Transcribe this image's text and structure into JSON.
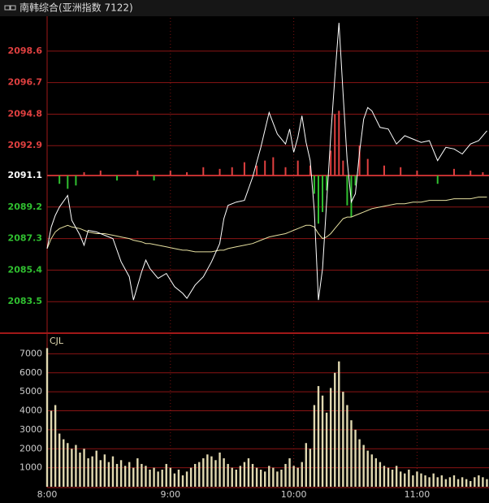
{
  "header": {
    "title": "南韩综合(亚洲指数 7122)"
  },
  "chart_data": [
    {
      "type": "line",
      "xlim": [
        0,
        215
      ],
      "ylim": [
        2081.6,
        2100.6
      ],
      "yticks": [
        2083.5,
        2085.4,
        2087.3,
        2089.2,
        2091.1,
        2092.9,
        2094.8,
        2096.7,
        2098.6
      ],
      "up_color": "#e04040",
      "down_color": "#30c030",
      "base": 2091.1,
      "grid": true,
      "x": [
        0,
        2,
        4,
        6,
        10,
        12,
        16,
        18,
        20,
        24,
        28,
        32,
        36,
        40,
        42,
        46,
        48,
        50,
        54,
        58,
        62,
        66,
        68,
        72,
        76,
        80,
        84,
        86,
        88,
        92,
        96,
        100,
        104,
        108,
        112,
        116,
        118,
        120,
        122,
        124,
        126,
        128,
        130,
        132,
        134,
        136,
        138,
        140,
        142,
        144,
        146,
        148,
        150,
        152,
        154,
        156,
        158,
        162,
        166,
        170,
        174,
        178,
        182,
        186,
        190,
        194,
        198,
        202,
        206,
        210,
        214
      ],
      "series": [
        {
          "color": "#ffffff",
          "values": [
            2086.7,
            2088.0,
            2088.7,
            2089.2,
            2089.9,
            2088.4,
            2087.5,
            2086.9,
            2087.8,
            2087.7,
            2087.5,
            2087.3,
            2085.9,
            2085.0,
            2083.6,
            2085.3,
            2086.0,
            2085.5,
            2084.9,
            2085.2,
            2084.4,
            2084.0,
            2083.7,
            2084.5,
            2085.0,
            2085.9,
            2087.0,
            2088.5,
            2089.3,
            2089.5,
            2089.6,
            2091.0,
            2092.8,
            2094.9,
            2093.6,
            2093.0,
            2093.9,
            2092.5,
            2093.4,
            2094.7,
            2093.1,
            2092.0,
            2089.0,
            2083.6,
            2085.5,
            2089.5,
            2093.5,
            2097.0,
            2100.3,
            2096.0,
            2092.0,
            2089.5,
            2090.0,
            2092.5,
            2094.5,
            2095.2,
            2095.0,
            2094.0,
            2093.9,
            2093.0,
            2093.5,
            2093.3,
            2093.1,
            2093.2,
            2092.0,
            2092.8,
            2092.7,
            2092.4,
            2093.0,
            2093.2,
            2093.8
          ]
        },
        {
          "color": "#e6e0a0",
          "values": [
            2086.7,
            2087.3,
            2087.7,
            2087.9,
            2088.1,
            2088.0,
            2087.9,
            2087.8,
            2087.7,
            2087.6,
            2087.6,
            2087.5,
            2087.4,
            2087.3,
            2087.2,
            2087.1,
            2087.0,
            2087.0,
            2086.9,
            2086.8,
            2086.7,
            2086.6,
            2086.6,
            2086.5,
            2086.5,
            2086.5,
            2086.6,
            2086.6,
            2086.7,
            2086.8,
            2086.9,
            2087.0,
            2087.2,
            2087.4,
            2087.5,
            2087.6,
            2087.7,
            2087.8,
            2087.9,
            2088.0,
            2088.1,
            2088.1,
            2088.0,
            2087.6,
            2087.3,
            2087.4,
            2087.6,
            2087.9,
            2088.2,
            2088.5,
            2088.6,
            2088.6,
            2088.7,
            2088.8,
            2088.9,
            2089.0,
            2089.1,
            2089.2,
            2089.3,
            2089.4,
            2089.4,
            2089.5,
            2089.5,
            2089.6,
            2089.6,
            2089.6,
            2089.7,
            2089.7,
            2089.7,
            2089.8,
            2089.8
          ]
        }
      ],
      "changes": {
        "x": [
          6,
          10,
          14,
          18,
          26,
          34,
          44,
          52,
          60,
          68,
          76,
          84,
          90,
          96,
          102,
          106,
          110,
          116,
          122,
          128,
          130,
          132,
          134,
          136,
          138,
          140,
          142,
          144,
          146,
          148,
          150,
          152,
          156,
          164,
          172,
          180,
          190,
          198,
          206,
          212
        ],
        "values": [
          2090.6,
          2090.3,
          2090.5,
          2091.3,
          2091.4,
          2090.8,
          2091.4,
          2090.8,
          2091.4,
          2091.3,
          2091.6,
          2091.5,
          2091.6,
          2091.9,
          2091.7,
          2092.0,
          2092.2,
          2091.6,
          2092.0,
          2091.7,
          2090.0,
          2088.2,
          2088.9,
          2090.2,
          2092.6,
          2094.8,
          2095.0,
          2092.0,
          2089.3,
          2088.6,
          2090.5,
          2092.9,
          2092.1,
          2091.7,
          2091.6,
          2091.4,
          2090.6,
          2091.5,
          2091.4,
          2091.3
        ]
      }
    },
    {
      "type": "bar",
      "label": "CJL",
      "color": "#e0d8b0",
      "xlim": [
        0,
        215
      ],
      "ylim": [
        0,
        8000
      ],
      "yticks": [
        1000,
        2000,
        3000,
        4000,
        5000,
        6000,
        7000
      ],
      "xticks": [
        {
          "value": 0,
          "label": "8:00"
        },
        {
          "value": 60,
          "label": "9:00"
        },
        {
          "value": 120,
          "label": "10:00"
        },
        {
          "value": 180,
          "label": "11:00"
        }
      ],
      "grid": true,
      "x": [
        0,
        2,
        4,
        6,
        8,
        10,
        12,
        14,
        16,
        18,
        20,
        22,
        24,
        26,
        28,
        30,
        32,
        34,
        36,
        38,
        40,
        42,
        44,
        46,
        48,
        50,
        52,
        54,
        56,
        58,
        60,
        62,
        64,
        66,
        68,
        70,
        72,
        74,
        76,
        78,
        80,
        82,
        84,
        86,
        88,
        90,
        92,
        94,
        96,
        98,
        100,
        102,
        104,
        106,
        108,
        110,
        112,
        114,
        116,
        118,
        120,
        122,
        124,
        126,
        128,
        130,
        132,
        134,
        136,
        138,
        140,
        142,
        144,
        146,
        148,
        150,
        152,
        154,
        156,
        158,
        160,
        162,
        164,
        166,
        168,
        170,
        172,
        174,
        176,
        178,
        180,
        182,
        184,
        186,
        188,
        190,
        192,
        194,
        196,
        198,
        200,
        202,
        204,
        206,
        208,
        210,
        212,
        214
      ],
      "values": [
        7300,
        4000,
        4300,
        2800,
        2500,
        2300,
        2000,
        2200,
        1800,
        2000,
        1500,
        1600,
        1900,
        1400,
        1700,
        1300,
        1600,
        1200,
        1400,
        1100,
        1300,
        1000,
        1500,
        1200,
        1100,
        900,
        1000,
        800,
        900,
        1200,
        1000,
        700,
        900,
        600,
        800,
        1000,
        1200,
        1300,
        1500,
        1700,
        1600,
        1400,
        1800,
        1500,
        1200,
        1000,
        900,
        1100,
        1300,
        1500,
        1200,
        1000,
        900,
        800,
        1100,
        1000,
        800,
        900,
        1200,
        1500,
        1100,
        1000,
        1300,
        2300,
        2000,
        4300,
        5300,
        4800,
        3900,
        5200,
        6000,
        6600,
        5000,
        4300,
        3500,
        3000,
        2500,
        2200,
        1900,
        1700,
        1500,
        1300,
        1100,
        1000,
        900,
        1100,
        800,
        700,
        900,
        600,
        800,
        700,
        600,
        500,
        700,
        500,
        600,
        400,
        500,
        600,
        400,
        500,
        400,
        300,
        500,
        600,
        500,
        400
      ]
    }
  ]
}
